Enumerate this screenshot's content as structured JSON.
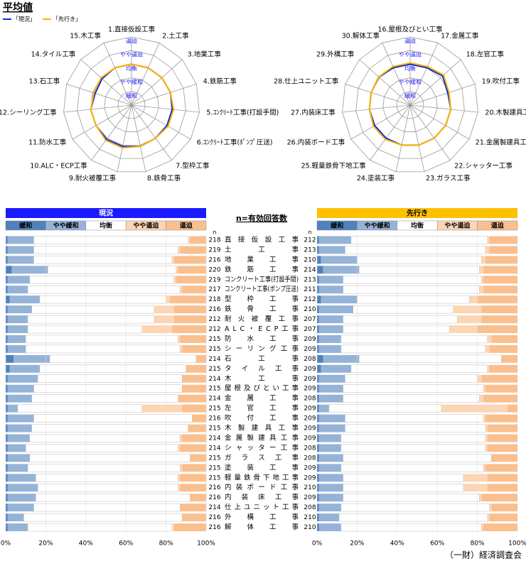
{
  "title": "平均値",
  "n_note": "n=有効回答数",
  "footer": "（一財）経済調査会",
  "chart_data": [
    {
      "type": "radar",
      "categories": [
        "1.直接仮設工事",
        "2.土工事",
        "3.地業工事",
        "4.鉄筋工事",
        "5.ｺﾝｸﾘｰﾄ工事(打設手間)",
        "6.ｺﾝｸﾘｰﾄ工事(ﾎﾟﾝﾌﾟ圧送)",
        "7.型枠工事",
        "8.鉄骨工事",
        "9.耐火被覆工事",
        "10.ALC・ECP工事",
        "11.防水工事",
        "12.シーリング工事",
        "13.石工事",
        "14.タイル工事",
        "15.木工事"
      ],
      "ylim": [
        0,
        5
      ],
      "yticks": [
        {
          "value": 1,
          "label": "緩和"
        },
        {
          "value": 2,
          "label": "やや緩和"
        },
        {
          "value": 3,
          "label": "均衡"
        },
        {
          "value": 4,
          "label": "やや逼迫"
        },
        {
          "value": 5,
          "label": "逼迫"
        }
      ],
      "series": [
        {
          "name": "「現況」",
          "color": "#0a2bd6",
          "values": [
            3.0,
            3.0,
            3.0,
            3.0,
            3.0,
            3.0,
            3.0,
            3.1,
            3.1,
            3.1,
            3.0,
            3.0,
            2.8,
            2.9,
            3.0
          ]
        },
        {
          "name": "「先行き」",
          "color": "#ffb400",
          "values": [
            3.0,
            3.0,
            3.0,
            3.0,
            3.1,
            3.1,
            3.0,
            3.1,
            3.2,
            3.2,
            3.0,
            3.0,
            2.9,
            3.0,
            3.0
          ]
        }
      ]
    },
    {
      "type": "radar",
      "categories": [
        "16.屋根及びとい工事",
        "17.金属工事",
        "18.左官工事",
        "19.吹付工事",
        "20.木製建具工事",
        "21.金属製建具工事",
        "22.シャッター工事",
        "23.ガラス工事",
        "24.塗装工事",
        "25.軽量鉄骨下地工事",
        "26.内装ボード工事",
        "27.内装床工事",
        "28.仕上ユニット工事",
        "29.外構工事",
        "30.解体工事"
      ],
      "ylim": [
        0,
        5
      ],
      "yticks": [
        {
          "value": 1,
          "label": "緩和"
        },
        {
          "value": 2,
          "label": "やや緩和"
        },
        {
          "value": 3,
          "label": "均衡"
        },
        {
          "value": 4,
          "label": "やや逼迫"
        },
        {
          "value": 5,
          "label": "逼迫"
        }
      ],
      "series": [
        {
          "color": "#0a2bd6",
          "values": [
            3.0,
            3.0,
            3.2,
            2.9,
            3.0,
            3.0,
            3.0,
            3.0,
            3.0,
            3.0,
            3.0,
            3.0,
            3.0,
            3.1,
            3.0
          ]
        },
        {
          "color": "#ffb400",
          "values": [
            3.1,
            3.1,
            3.3,
            3.0,
            3.0,
            3.0,
            3.0,
            3.0,
            3.0,
            3.1,
            3.1,
            3.0,
            3.0,
            3.1,
            3.1
          ]
        }
      ]
    },
    {
      "type": "stacked_bar",
      "title": "現況",
      "title_color": "#1a1aff",
      "n_label": "n",
      "categories": [
        "直接仮設工事",
        "土工事",
        "地業工事",
        "鉄筋工事",
        "コンクリート工事(打設手間)",
        "コンクリート工事(ポンプ圧送)",
        "型枠工事",
        "鉄骨工事",
        "耐火被覆工事",
        "ALC・ECP工事",
        "防水工事",
        "シーリング工事",
        "石工事",
        "タイル工事",
        "木工事",
        "屋根及びとい工事",
        "金属工事",
        "左官工事",
        "吹付工事",
        "木製建具工事",
        "金属製建具工事",
        "シャッター工事",
        "ガラス工事",
        "塗装工事",
        "軽量鉄骨下地工事",
        "内装ボード工事",
        "内装床工事",
        "仕上ユニット工事",
        "外構工事",
        "解体工事"
      ],
      "n_values": [
        218,
        219,
        216,
        220,
        219,
        217,
        218,
        216,
        212,
        212,
        215,
        215,
        214,
        215,
        214,
        215,
        214,
        215,
        216,
        215,
        214,
        214,
        215,
        215,
        215,
        216,
        216,
        214,
        216,
        216
      ],
      "xlim": [
        0,
        100
      ],
      "xticks": [
        {
          "value": 0,
          "label": "0%"
        },
        {
          "value": 20,
          "label": "20%"
        },
        {
          "value": 40,
          "label": "40%"
        },
        {
          "value": 60,
          "label": "60%"
        },
        {
          "value": 80,
          "label": "80%"
        },
        {
          "value": 100,
          "label": "100%"
        }
      ],
      "series": [
        {
          "name": "緩和",
          "color": "#4f81bd",
          "values": [
            1,
            1,
            1,
            3,
            1,
            1,
            2,
            1,
            1,
            1,
            1,
            1,
            4,
            2,
            1,
            1,
            1,
            1,
            1,
            1,
            1,
            1,
            1,
            1,
            1,
            1,
            1,
            1,
            1,
            1
          ]
        },
        {
          "name": "やや緩和",
          "color": "#95b3d7",
          "values": [
            13,
            13,
            13,
            18,
            11,
            10,
            15,
            12,
            10,
            10,
            9,
            9,
            18,
            15,
            15,
            13,
            12,
            5,
            13,
            12,
            11,
            9,
            11,
            10,
            14,
            15,
            14,
            13,
            8,
            10
          ]
        },
        {
          "name": "均衡",
          "color": "#ffffff",
          "values": [
            77,
            72,
            69,
            64,
            72,
            76,
            63,
            61,
            63,
            57,
            76,
            77,
            73,
            73,
            72,
            74,
            73,
            62,
            79,
            78,
            75,
            76,
            80,
            76,
            71,
            70,
            77,
            73,
            79,
            72
          ]
        },
        {
          "name": "やや逼迫",
          "color": "#fcd5b4",
          "values": [
            1,
            1,
            1,
            1,
            1,
            1,
            2,
            10,
            10,
            15,
            1,
            1,
            0,
            0,
            0,
            0,
            0,
            20,
            0,
            0,
            1,
            1,
            0,
            1,
            1,
            1,
            0,
            0,
            0,
            1
          ]
        },
        {
          "name": "逼迫",
          "color": "#fabf8f",
          "values": [
            8,
            13,
            16,
            14,
            15,
            12,
            18,
            16,
            16,
            17,
            13,
            12,
            5,
            10,
            12,
            12,
            14,
            12,
            7,
            9,
            12,
            13,
            8,
            12,
            13,
            13,
            8,
            13,
            12,
            16
          ]
        }
      ]
    },
    {
      "type": "stacked_bar",
      "title": "先行き",
      "title_color": "#ffc000",
      "n_label": "n",
      "n_values": [
        212,
        213,
        210,
        214,
        213,
        211,
        212,
        210,
        207,
        207,
        209,
        209,
        208,
        209,
        209,
        209,
        208,
        209,
        209,
        209,
        209,
        208,
        208,
        209,
        209,
        210,
        209,
        208,
        210,
        210
      ],
      "xlim": [
        0,
        100
      ],
      "xticks": [
        {
          "value": 0,
          "label": "0%"
        },
        {
          "value": 20,
          "label": "20%"
        },
        {
          "value": 40,
          "label": "40%"
        },
        {
          "value": 60,
          "label": "60%"
        },
        {
          "value": 80,
          "label": "80%"
        },
        {
          "value": 100,
          "label": "100%"
        }
      ],
      "series": [
        {
          "name": "緩和",
          "color": "#4f81bd",
          "values": [
            1,
            1,
            2,
            3,
            1,
            1,
            2,
            1,
            1,
            1,
            1,
            1,
            3,
            2,
            1,
            1,
            1,
            1,
            1,
            1,
            1,
            1,
            1,
            1,
            1,
            1,
            1,
            1,
            1,
            1
          ]
        },
        {
          "name": "やや緩和",
          "color": "#95b3d7",
          "values": [
            16,
            13,
            18,
            18,
            12,
            12,
            18,
            17,
            12,
            12,
            11,
            11,
            18,
            15,
            13,
            12,
            12,
            5,
            13,
            13,
            11,
            11,
            12,
            11,
            12,
            12,
            12,
            11,
            10,
            11
          ]
        },
        {
          "name": "均衡",
          "color": "#ffffff",
          "values": [
            68,
            70,
            62,
            60,
            69,
            68,
            56,
            50,
            57,
            53,
            73,
            72,
            71,
            68,
            66,
            70,
            68,
            56,
            69,
            70,
            72,
            72,
            74,
            71,
            60,
            60,
            68,
            74,
            74,
            70
          ]
        },
        {
          "name": "やや逼迫",
          "color": "#fcd5b4",
          "values": [
            1,
            2,
            2,
            2,
            1,
            2,
            4,
            14,
            12,
            14,
            2,
            2,
            0,
            1,
            2,
            1,
            2,
            33,
            1,
            1,
            1,
            1,
            0,
            1,
            12,
            12,
            1,
            1,
            1,
            1
          ]
        },
        {
          "name": "逼迫",
          "color": "#fabf8f",
          "values": [
            14,
            14,
            16,
            17,
            17,
            17,
            20,
            18,
            18,
            20,
            13,
            14,
            8,
            14,
            18,
            16,
            17,
            5,
            16,
            15,
            15,
            15,
            13,
            16,
            15,
            15,
            18,
            13,
            14,
            17
          ]
        }
      ]
    }
  ]
}
